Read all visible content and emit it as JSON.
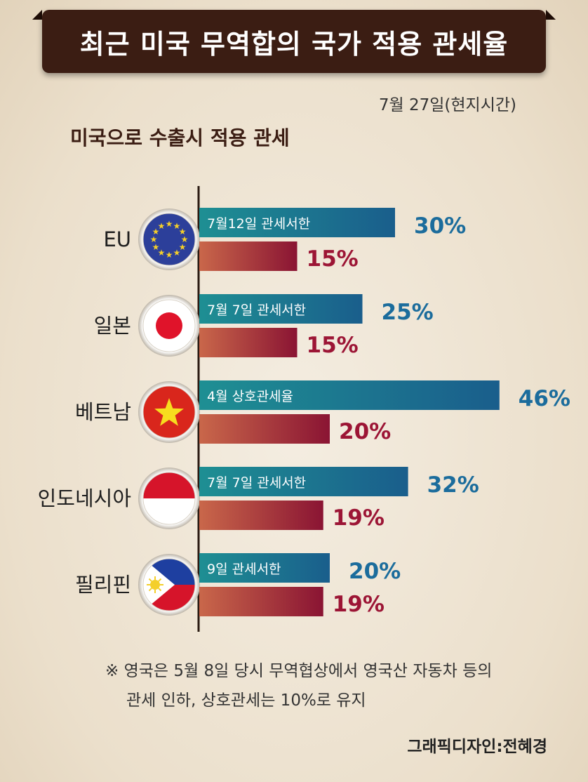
{
  "title": "최근 미국 무역합의 국가 적용 관세율",
  "date": "7월 27일(현지시간)",
  "subtitle": "미국으로 수출시 적용 관세",
  "colors": {
    "banner": "#3b1d13",
    "deal_bar": "#1e8f93",
    "deal_bar_end": "#1a5e8c",
    "current_bar_start": "#c9674a",
    "current_bar_end": "#8a1433",
    "deal_label": "#1b6c9c",
    "current_label": "#9c1535"
  },
  "chart_data": {
    "type": "bar",
    "orientation": "horizontal",
    "categories": [
      "EU",
      "일본",
      "베트남",
      "인도네시아",
      "필리핀"
    ],
    "flags": [
      "eu-flag-icon",
      "japan-flag-icon",
      "vietnam-flag-icon",
      "indonesia-flag-icon",
      "philippines-flag-icon"
    ],
    "series": [
      {
        "values": [
          30,
          25,
          46,
          32,
          20
        ],
        "value_labels": [
          "30%",
          "25%",
          "46%",
          "32%",
          "20%"
        ],
        "bar_labels": [
          "7월12일 관세서한",
          "7월 7일 관세서한",
          "4월 상호관세율",
          "7월 7일 관세서한",
          "9일 관세서한"
        ]
      },
      {
        "values": [
          15,
          15,
          20,
          19,
          19
        ],
        "value_labels": [
          "15%",
          "15%",
          "20%",
          "19%",
          "19%"
        ]
      }
    ]
  },
  "note": {
    "line1": "※ 영국은 5월 8일 당시 무역협상에서 영국산 자동차 등의",
    "line2": "관세 인하,  상호관세는 10%로 유지"
  },
  "credit": "그래픽디자인:전혜경"
}
